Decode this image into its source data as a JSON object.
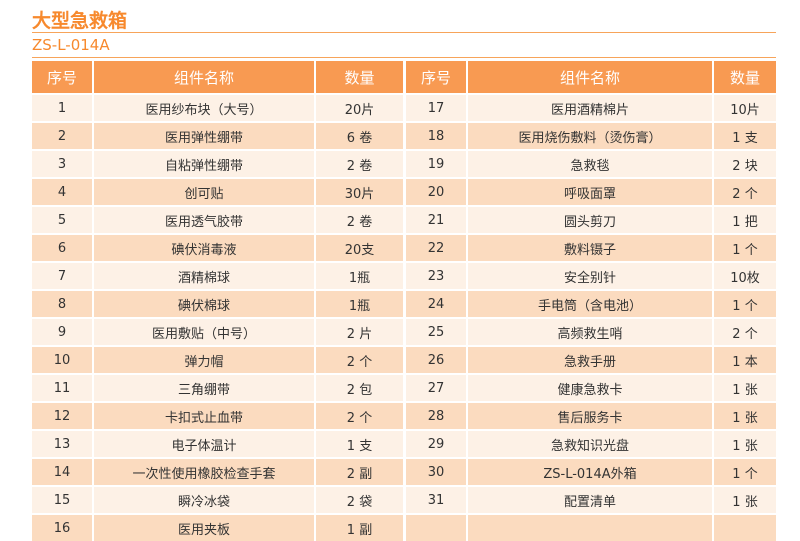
{
  "title": "大型急救箱",
  "code": "ZS-L-014A",
  "headers": {
    "no": "序号",
    "name": "组件名称",
    "qty": "数量"
  },
  "left_items": [
    {
      "no": "1",
      "name": "医用纱布块（大号）",
      "qty": "20片"
    },
    {
      "no": "2",
      "name": "医用弹性绷带",
      "qty": "6 卷"
    },
    {
      "no": "3",
      "name": "自粘弹性绷带",
      "qty": "2 卷"
    },
    {
      "no": "4",
      "name": "创可贴",
      "qty": "30片"
    },
    {
      "no": "5",
      "name": "医用透气胶带",
      "qty": "2 卷"
    },
    {
      "no": "6",
      "name": "碘伏消毒液",
      "qty": "20支"
    },
    {
      "no": "7",
      "name": "酒精棉球",
      "qty": "1瓶"
    },
    {
      "no": "8",
      "name": "碘伏棉球",
      "qty": "1瓶"
    },
    {
      "no": "9",
      "name": "医用敷贴（中号）",
      "qty": "2 片"
    },
    {
      "no": "10",
      "name": "弹力帽",
      "qty": "2 个"
    },
    {
      "no": "11",
      "name": "三角绷带",
      "qty": "2 包"
    },
    {
      "no": "12",
      "name": "卡扣式止血带",
      "qty": "2 个"
    },
    {
      "no": "13",
      "name": "电子体温计",
      "qty": "1 支"
    },
    {
      "no": "14",
      "name": "一次性使用橡胶检查手套",
      "qty": "2 副"
    },
    {
      "no": "15",
      "name": "瞬冷冰袋",
      "qty": "2 袋"
    },
    {
      "no": "16",
      "name": "医用夹板",
      "qty": "1 副"
    }
  ],
  "right_items": [
    {
      "no": "17",
      "name": "医用酒精棉片",
      "qty": "10片"
    },
    {
      "no": "18",
      "name": "医用烧伤敷料（烫伤膏）",
      "qty": "1 支"
    },
    {
      "no": "19",
      "name": "急救毯",
      "qty": "2 块"
    },
    {
      "no": "20",
      "name": "呼吸面罩",
      "qty": "2 个"
    },
    {
      "no": "21",
      "name": "圆头剪刀",
      "qty": "1 把"
    },
    {
      "no": "22",
      "name": "敷料镊子",
      "qty": "1 个"
    },
    {
      "no": "23",
      "name": "安全别针",
      "qty": "10枚"
    },
    {
      "no": "24",
      "name": "手电筒（含电池）",
      "qty": "1 个"
    },
    {
      "no": "25",
      "name": "高频救生哨",
      "qty": "2 个"
    },
    {
      "no": "26",
      "name": "急救手册",
      "qty": "1 本"
    },
    {
      "no": "27",
      "name": "健康急救卡",
      "qty": "1 张"
    },
    {
      "no": "28",
      "name": "售后服务卡",
      "qty": "1 张"
    },
    {
      "no": "29",
      "name": "急救知识光盘",
      "qty": "1 张"
    },
    {
      "no": "30",
      "name": "ZS-L-014A外箱",
      "qty": "1 个"
    },
    {
      "no": "31",
      "name": "配置清单",
      "qty": "1 张"
    },
    {
      "no": "",
      "name": "",
      "qty": ""
    }
  ]
}
